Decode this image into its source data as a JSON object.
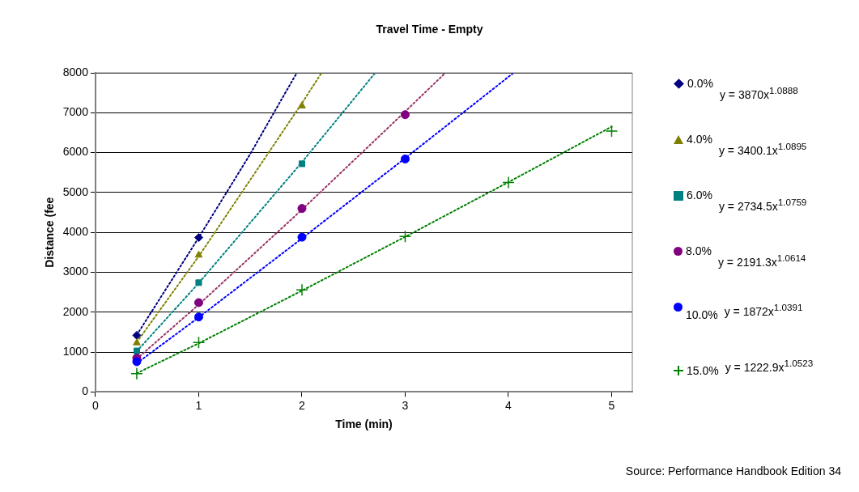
{
  "chart_data": {
    "type": "scatter",
    "title": "Travel Time - Empty",
    "xlabel": "Time (min)",
    "ylabel": "Distance (fee",
    "xlim": [
      0,
      5.2
    ],
    "xticks": [
      0,
      1,
      2,
      3,
      4,
      5
    ],
    "ylim": [
      0,
      8000
    ],
    "yticks": [
      0,
      1000,
      2000,
      3000,
      4000,
      5000,
      6000,
      7000,
      8000
    ],
    "grid": "y",
    "legend": "right",
    "series": [
      {
        "name": "0.0%",
        "color": "#000080",
        "marker": "diamond",
        "x": [
          0.4,
          1
        ],
        "values": [
          1420,
          3870
        ]
      },
      {
        "name": "4.0%",
        "color": "#808000",
        "marker": "triangle",
        "x": [
          0.4,
          1,
          2
        ],
        "values": [
          1230,
          3430,
          7170
        ]
      },
      {
        "name": "6.0%",
        "color": "#008080",
        "marker": "square",
        "x": [
          0.4,
          1,
          2
        ],
        "values": [
          1030,
          2740,
          5720
        ]
      },
      {
        "name": "8.0%",
        "color": "#800080",
        "marker": "circle",
        "x": [
          0.4,
          1,
          2,
          3
        ],
        "values": [
          850,
          2240,
          4600,
          6950
        ]
      },
      {
        "name": "10.0%",
        "color": "#0000ff",
        "marker": "circle",
        "x": [
          0.4,
          1,
          2,
          3
        ],
        "values": [
          760,
          1880,
          3880,
          5840
        ]
      },
      {
        "name": "15.0%",
        "color": "#008000",
        "marker": "cross",
        "x": [
          0.4,
          1,
          2,
          3,
          4,
          5
        ],
        "values": [
          460,
          1240,
          2560,
          3900,
          5250,
          6540
        ]
      },
      {
        "type": "line",
        "color": "#000080",
        "line_style": "dotted",
        "marker": "none",
        "x": [
          0.4,
          1,
          1.5,
          1.95
        ],
        "values": [
          1430,
          3870,
          5970,
          8000
        ]
      },
      {
        "type": "line",
        "color": "#808000",
        "line_style": "dotted",
        "marker": "none",
        "x": [
          0.4,
          1,
          2,
          2.19
        ],
        "values": [
          1250,
          3400,
          7240,
          8000
        ]
      },
      {
        "type": "line",
        "color": "#008080",
        "line_style": "dotted",
        "marker": "none",
        "x": [
          0.4,
          1,
          2,
          2.71
        ],
        "values": [
          1020,
          2730,
          5760,
          8000
        ]
      },
      {
        "type": "line",
        "color": "#993366",
        "line_style": "dotted",
        "marker": "none",
        "x": [
          0.4,
          1,
          2,
          3,
          3.39
        ],
        "values": [
          830,
          2190,
          4570,
          7030,
          8000
        ]
      },
      {
        "type": "line",
        "color": "#0000ff",
        "line_style": "dotted",
        "marker": "none",
        "x": [
          0.4,
          1,
          2,
          3,
          4.05
        ],
        "values": [
          720,
          1870,
          3850,
          5860,
          8000
        ]
      },
      {
        "type": "line",
        "color": "#008000",
        "line_style": "dotted",
        "marker": "none",
        "x": [
          0.4,
          1,
          2,
          3,
          4,
          5
        ],
        "values": [
          470,
          1220,
          2540,
          3890,
          5260,
          6650
        ]
      }
    ],
    "annotations": [
      "y = 3870x$^{1.0888}$",
      "y = 3400.1x$^{1.0895}$",
      "y = 2734.5x$^{1.0759}$",
      "y = 2191.3x$^{1.0614}$",
      "y = 1872x$^{1.0391}$",
      "y = 1222.9x$^{1.0523}$",
      "Source: Performance Handbook Edition 34"
    ]
  }
}
